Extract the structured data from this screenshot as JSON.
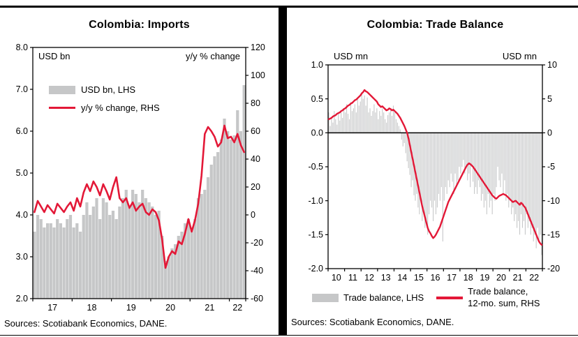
{
  "colors": {
    "bar": "#c6c7c8",
    "line": "#e31837",
    "frame": "#000000",
    "text": "#000000"
  },
  "chart_data": [
    {
      "type": "bar+line",
      "title": "Colombia: Imports",
      "left_axis_label": "USD bn",
      "right_axis_label": "y/y % change",
      "legend": {
        "bars": "USD bn, LHS",
        "line": "y/y % change, RHS"
      },
      "x_tick_labels": [
        "17",
        "18",
        "19",
        "20",
        "21",
        "22"
      ],
      "left_ylim": [
        2.0,
        8.0
      ],
      "left_ticks": [
        "8.0",
        "7.0",
        "6.0",
        "5.0",
        "4.0",
        "3.0",
        "2.0"
      ],
      "right_ylim": [
        -60,
        120
      ],
      "right_ticks": [
        "120",
        "100",
        "80",
        "60",
        "40",
        "20",
        "0",
        "-20",
        "-40",
        "-60"
      ],
      "bar_baseline": "min",
      "zero_line": false,
      "corner_labels_inside": true,
      "bars": [
        3.6,
        4.0,
        3.9,
        3.7,
        3.8,
        3.8,
        3.7,
        3.9,
        3.8,
        3.7,
        3.9,
        4.0,
        3.7,
        3.8,
        3.6,
        4.0,
        4.3,
        4.0,
        4.2,
        4.4,
        3.9,
        4.4,
        4.3,
        4.0,
        4.1,
        3.9,
        4.2,
        4.4,
        4.6,
        4.2,
        4.6,
        4.5,
        4.3,
        4.6,
        4.4,
        4.3,
        4.2,
        4.0,
        4.1,
        3.5,
        2.9,
        3.0,
        3.2,
        3.3,
        3.5,
        3.6,
        3.8,
        3.9,
        3.7,
        3.9,
        4.4,
        4.5,
        4.6,
        4.9,
        5.2,
        5.4,
        5.5,
        5.8,
        6.3,
        6.0,
        5.8,
        5.9,
        6.5,
        6.0,
        7.1
      ],
      "line": [
        2,
        10,
        6,
        2,
        7,
        4,
        1,
        8,
        5,
        2,
        6,
        9,
        3,
        12,
        6,
        16,
        22,
        17,
        24,
        20,
        14,
        22,
        17,
        11,
        20,
        27,
        12,
        9,
        12,
        5,
        9,
        3,
        6,
        8,
        2,
        0,
        4,
        2,
        -4,
        -18,
        -38,
        -30,
        -26,
        -28,
        -19,
        -21,
        -13,
        -3,
        -12,
        -4,
        8,
        28,
        58,
        63,
        60,
        56,
        49,
        52,
        64,
        55,
        56,
        52,
        58,
        50,
        45
      ],
      "sources": "Sources: Scotiabank Economics, DANE."
    },
    {
      "type": "bar+line",
      "title": "Colombia: Trade Balance",
      "left_axis_label": "USD mn",
      "right_axis_label": "USD mn",
      "legend": {
        "bars": "Trade balance, LHS",
        "line": "Trade balance,\n12-mo. sum, RHS"
      },
      "x_tick_labels": [
        "10",
        "11",
        "12",
        "13",
        "14",
        "15",
        "16",
        "17",
        "18",
        "19",
        "20",
        "21",
        "22"
      ],
      "left_ylim": [
        -2.0,
        1.0
      ],
      "left_ticks": [
        "1.0",
        "0.5",
        "0.0",
        "-0.5",
        "-1.0",
        "-1.5",
        "-2.0"
      ],
      "right_ylim": [
        -20,
        10
      ],
      "right_ticks": [
        "10",
        "5",
        "0",
        "-5",
        "-10",
        "-15",
        "-20"
      ],
      "bar_baseline": 0,
      "zero_line": true,
      "corner_labels_inside": false,
      "bars": [
        0.3,
        0.1,
        0.22,
        0.15,
        0.32,
        0.2,
        0.12,
        0.28,
        0.18,
        0.3,
        0.22,
        0.35,
        0.3,
        0.42,
        0.28,
        0.2,
        0.45,
        0.32,
        0.36,
        0.42,
        0.3,
        0.5,
        0.4,
        0.46,
        0.6,
        0.5,
        0.55,
        0.4,
        0.52,
        0.3,
        0.36,
        0.25,
        0.32,
        0.42,
        0.3,
        0.36,
        0.2,
        0.32,
        0.25,
        0.36,
        0.3,
        0.2,
        0.15,
        0.26,
        0.3,
        0.36,
        0.25,
        0.4,
        0.3,
        0.2,
        0.15,
        0.1,
        0.05,
        -0.1,
        -0.2,
        -0.15,
        -0.3,
        -0.42,
        -0.52,
        -0.62,
        -0.8,
        -0.7,
        -0.92,
        -1.0,
        -0.9,
        -1.1,
        -1.2,
        -1.0,
        -1.3,
        -1.18,
        -1.4,
        -1.3,
        -1.5,
        -1.2,
        -1.0,
        -1.1,
        -1.3,
        -1.0,
        -1.2,
        -1.1,
        -0.9,
        -1.0,
        -0.8,
        -1.6,
        -1.0,
        -0.8,
        -0.9,
        -0.7,
        -0.8,
        -0.6,
        -0.72,
        -0.9,
        -0.6,
        -0.8,
        -0.7,
        -0.5,
        -0.6,
        -0.5,
        -0.4,
        -0.6,
        -0.5,
        -0.7,
        -0.6,
        -0.8,
        -0.5,
        -0.72,
        -0.9,
        -0.8,
        -0.9,
        -0.7,
        -0.8,
        -1.0,
        -0.9,
        -1.1,
        -1.0,
        -1.2,
        -0.9,
        -1.1,
        -1.0,
        -1.2,
        -0.9,
        -1.0,
        -0.8,
        -0.5,
        -0.7,
        -0.8,
        -0.6,
        -0.9,
        -0.7,
        -1.0,
        -0.9,
        -1.1,
        -1.0,
        -1.2,
        -1.1,
        -1.3,
        -1.2,
        -1.4,
        -1.3,
        -1.5,
        -1.2,
        -1.4,
        -1.3,
        -1.5,
        -1.2,
        -1.4,
        -1.3,
        -1.5,
        -1.4,
        -1.6,
        -1.5,
        -1.7,
        -1.4,
        -1.6,
        -1.5,
        -1.8
      ],
      "line": [
        2.0,
        2.1,
        2.2,
        2.4,
        2.5,
        2.6,
        2.8,
        2.9,
        3.0,
        3.2,
        3.3,
        3.5,
        3.6,
        3.8,
        4.0,
        4.1,
        4.3,
        4.4,
        4.6,
        4.8,
        4.9,
        5.1,
        5.3,
        5.5,
        5.8,
        6.0,
        6.3,
        6.1,
        6.0,
        5.8,
        5.6,
        5.4,
        5.2,
        5.0,
        4.8,
        4.6,
        4.2,
        4.0,
        3.8,
        3.9,
        3.7,
        3.5,
        3.3,
        3.4,
        3.6,
        3.5,
        3.3,
        3.4,
        3.2,
        3.0,
        2.8,
        2.5,
        2.2,
        1.8,
        1.4,
        1.0,
        0.5,
        0.0,
        -0.8,
        -1.8,
        -2.8,
        -3.8,
        -4.8,
        -5.8,
        -6.8,
        -7.8,
        -8.8,
        -9.8,
        -10.8,
        -11.6,
        -12.4,
        -13.2,
        -14.0,
        -14.5,
        -14.8,
        -15.2,
        -15.5,
        -15.3,
        -15.0,
        -14.6,
        -14.2,
        -13.8,
        -13.2,
        -12.6,
        -12.0,
        -11.4,
        -10.8,
        -10.2,
        -9.8,
        -9.4,
        -9.0,
        -8.6,
        -8.2,
        -7.8,
        -7.4,
        -7.0,
        -6.6,
        -6.2,
        -5.8,
        -5.4,
        -5.0,
        -4.7,
        -4.5,
        -4.6,
        -4.8,
        -5.0,
        -5.3,
        -5.6,
        -5.9,
        -6.2,
        -6.5,
        -6.8,
        -7.1,
        -7.4,
        -7.7,
        -8.0,
        -8.3,
        -8.6,
        -8.9,
        -9.2,
        -9.4,
        -9.6,
        -9.7,
        -9.5,
        -9.3,
        -9.2,
        -9.1,
        -9.0,
        -9.1,
        -9.2,
        -9.4,
        -9.6,
        -9.8,
        -10.0,
        -10.2,
        -10.1,
        -10.0,
        -10.2,
        -10.4,
        -10.6,
        -10.3,
        -10.5,
        -10.8,
        -11.0,
        -11.5,
        -12.0,
        -12.5,
        -13.0,
        -13.5,
        -14.0,
        -14.5,
        -15.0,
        -15.5,
        -16.0,
        -16.3,
        -16.5
      ],
      "sources": "Sources: Scotiabank Economics, DANE."
    }
  ]
}
